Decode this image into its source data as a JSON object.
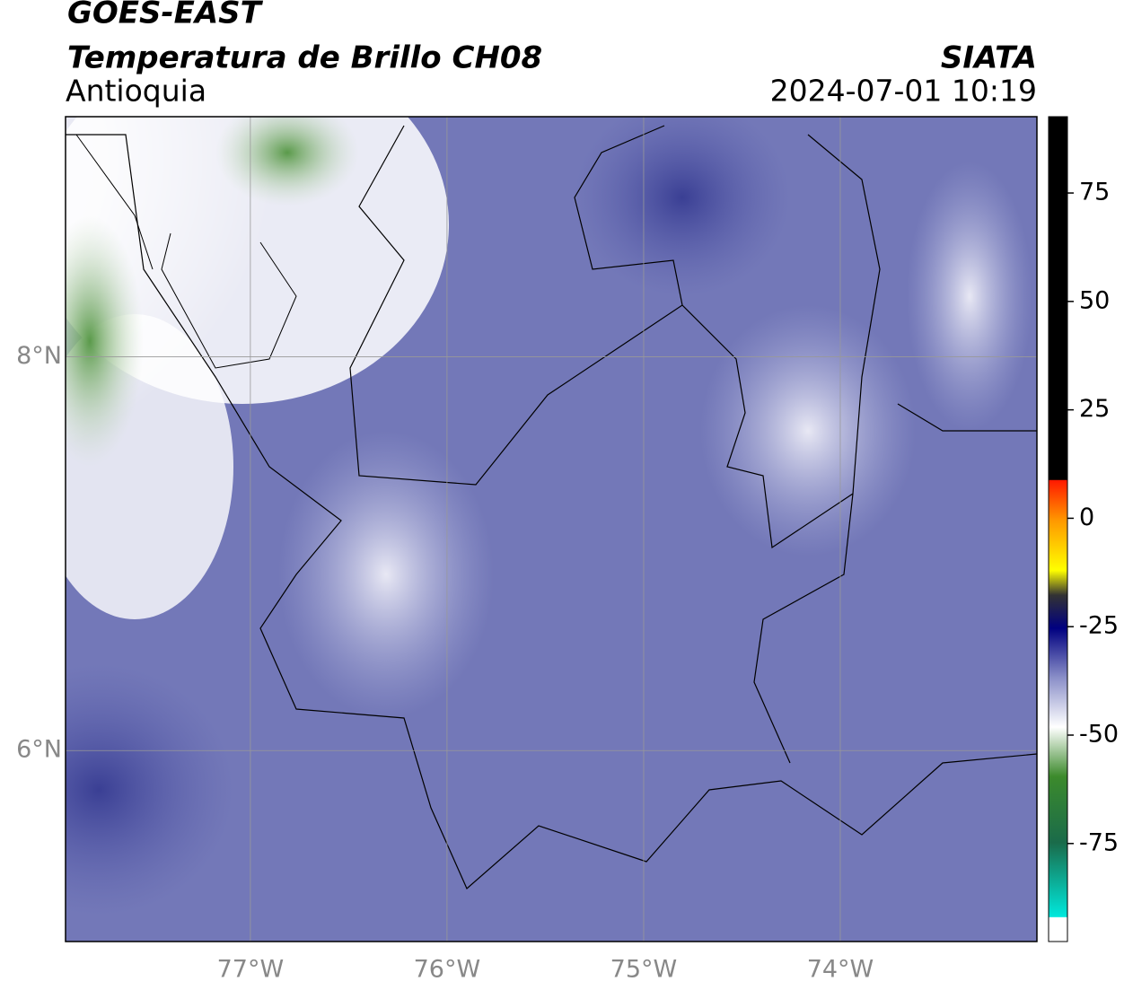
{
  "header": {
    "source": "GOES-EAST",
    "title": "Temperatura de Brillo CH08",
    "region": "Antioquia",
    "agency": "SIATA",
    "datetime": "2024-07-01 10:19"
  },
  "map": {
    "xlim": [
      -77.94,
      -73.0
    ],
    "ylim": [
      5.03,
      9.22
    ],
    "xticks": [
      {
        "value": -77,
        "label": "77°W"
      },
      {
        "value": -76,
        "label": "76°W"
      },
      {
        "value": -75,
        "label": "75°W"
      },
      {
        "value": -74,
        "label": "74°W"
      }
    ],
    "yticks": [
      {
        "value": 8,
        "label": "8°N"
      },
      {
        "value": 6,
        "label": "6°N"
      }
    ]
  },
  "colorbar": {
    "lim": [
      -97.6,
      92.6
    ],
    "ticks": [
      75,
      50,
      25,
      0,
      -25,
      -50,
      -75
    ]
  }
}
